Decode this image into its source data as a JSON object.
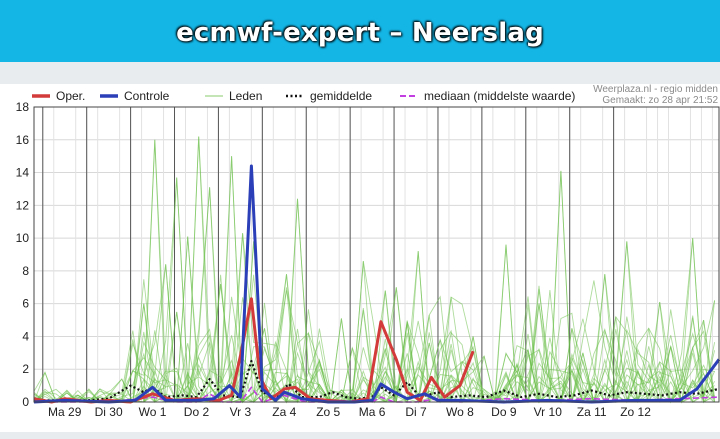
{
  "header": {
    "title": "ecmwf-expert – Neerslag"
  },
  "credit": {
    "source": "Weerplaza.nl - regio midden",
    "made": "Gemaakt: zo 28 apr 21:52"
  },
  "colors": {
    "oper": "#d33a3a",
    "controle": "#2b3fb8",
    "leden": "#6cbf4b",
    "gemiddelde": "#111111",
    "mediaan": "#c33ee0"
  },
  "chart_data": {
    "type": "line",
    "x_unit": "days from Ma 29 (00h ticks)",
    "xlim": [
      -0.7,
      14.9
    ],
    "ylim": [
      0,
      18
    ],
    "y_ticks": [
      0,
      2,
      4,
      6,
      8,
      10,
      12,
      14,
      16,
      18
    ],
    "x_ticks": [
      {
        "x": 0,
        "label": "Ma 29"
      },
      {
        "x": 1,
        "label": "Di 30"
      },
      {
        "x": 2,
        "label": "Wo 1"
      },
      {
        "x": 3,
        "label": "Do 2"
      },
      {
        "x": 4,
        "label": "Vr 3"
      },
      {
        "x": 5,
        "label": "Za 4"
      },
      {
        "x": 6,
        "label": "Zo 5"
      },
      {
        "x": 7,
        "label": "Ma 6"
      },
      {
        "x": 8,
        "label": "Di 7"
      },
      {
        "x": 9,
        "label": "Wo 8"
      },
      {
        "x": 10,
        "label": "Do 9"
      },
      {
        "x": 11,
        "label": "Vr 10"
      },
      {
        "x": 12,
        "label": "Za 11"
      },
      {
        "x": 13,
        "label": "Zo 12"
      }
    ],
    "grid": true,
    "legend": [
      {
        "key": "oper",
        "label": "Oper.",
        "style": "solid-thick"
      },
      {
        "key": "controle",
        "label": "Controle",
        "style": "solid-thick"
      },
      {
        "key": "leden",
        "label": "Leden",
        "style": "solid-thin"
      },
      {
        "key": "gemiddelde",
        "label": "gemiddelde",
        "style": "dotted"
      },
      {
        "key": "mediaan",
        "label": "mediaan (middelste waarde)",
        "style": "dashed"
      }
    ],
    "series": [
      {
        "key": "oper",
        "name": "Oper.",
        "points": [
          [
            -0.7,
            0.2
          ],
          [
            -0.3,
            0
          ],
          [
            0,
            0.2
          ],
          [
            0.3,
            0.1
          ],
          [
            0.6,
            0
          ],
          [
            1,
            0.1
          ],
          [
            1.5,
            0
          ],
          [
            2,
            0.5
          ],
          [
            2.5,
            0.1
          ],
          [
            3,
            0.2
          ],
          [
            3.5,
            0.1
          ],
          [
            3.8,
            0.4
          ],
          [
            4,
            2.8
          ],
          [
            4.25,
            6.3
          ],
          [
            4.45,
            1.5
          ],
          [
            4.7,
            0.2
          ],
          [
            5,
            0.8
          ],
          [
            5.25,
            0.9
          ],
          [
            5.6,
            0.2
          ],
          [
            6,
            0.1
          ],
          [
            6.5,
            0
          ],
          [
            6.9,
            0.2
          ],
          [
            7.2,
            4.9
          ],
          [
            7.55,
            2.6
          ],
          [
            7.8,
            0.6
          ],
          [
            8.1,
            0.1
          ],
          [
            8.35,
            1.5
          ],
          [
            8.65,
            0.3
          ],
          [
            9.0,
            1.0
          ],
          [
            9.3,
            3.1
          ]
        ]
      },
      {
        "key": "controle",
        "name": "Controle",
        "points": [
          [
            -0.7,
            0
          ],
          [
            0,
            0.1
          ],
          [
            1,
            0
          ],
          [
            1.6,
            0.1
          ],
          [
            2,
            0.9
          ],
          [
            2.3,
            0.1
          ],
          [
            3,
            0.1
          ],
          [
            3.4,
            0.2
          ],
          [
            3.75,
            1.0
          ],
          [
            4.0,
            0.3
          ],
          [
            4.25,
            14.4
          ],
          [
            4.5,
            0.8
          ],
          [
            4.8,
            0.1
          ],
          [
            5,
            0.6
          ],
          [
            5.4,
            0.2
          ],
          [
            6,
            0
          ],
          [
            6.6,
            0
          ],
          [
            7.0,
            0.1
          ],
          [
            7.2,
            1.1
          ],
          [
            7.5,
            0.6
          ],
          [
            7.8,
            0.2
          ],
          [
            8.2,
            0.5
          ],
          [
            8.5,
            0.1
          ],
          [
            9,
            0.1
          ],
          [
            10,
            0
          ],
          [
            11,
            0.1
          ],
          [
            12,
            0
          ],
          [
            13,
            0.1
          ],
          [
            14,
            0.1
          ],
          [
            14.4,
            0.8
          ],
          [
            14.9,
            2.6
          ]
        ]
      },
      {
        "key": "gemiddelde",
        "name": "gemiddelde",
        "points": [
          [
            -0.7,
            0.1
          ],
          [
            0,
            0.1
          ],
          [
            0.5,
            0.1
          ],
          [
            1,
            0.2
          ],
          [
            1.5,
            1.0
          ],
          [
            1.8,
            0.6
          ],
          [
            2,
            0.9
          ],
          [
            2.3,
            0.3
          ],
          [
            2.7,
            0.4
          ],
          [
            3,
            0.3
          ],
          [
            3.3,
            1.4
          ],
          [
            3.6,
            0.4
          ],
          [
            4.0,
            0.3
          ],
          [
            4.25,
            2.5
          ],
          [
            4.5,
            0.6
          ],
          [
            4.8,
            0.3
          ],
          [
            5.1,
            1.1
          ],
          [
            5.4,
            0.3
          ],
          [
            5.8,
            0.3
          ],
          [
            6.1,
            0.6
          ],
          [
            6.4,
            0.3
          ],
          [
            6.7,
            0.2
          ],
          [
            7.0,
            0.3
          ],
          [
            7.2,
            0.9
          ],
          [
            7.5,
            0.4
          ],
          [
            7.8,
            1.2
          ],
          [
            8.1,
            0.3
          ],
          [
            8.5,
            0.6
          ],
          [
            8.8,
            0.3
          ],
          [
            9.2,
            0.4
          ],
          [
            9.6,
            0.3
          ],
          [
            10,
            0.7
          ],
          [
            10.4,
            0.3
          ],
          [
            10.8,
            0.5
          ],
          [
            11.2,
            0.3
          ],
          [
            11.6,
            0.4
          ],
          [
            12,
            0.7
          ],
          [
            12.4,
            0.4
          ],
          [
            12.8,
            0.6
          ],
          [
            13.2,
            0.5
          ],
          [
            13.6,
            0.4
          ],
          [
            14,
            0.6
          ],
          [
            14.4,
            0.5
          ],
          [
            14.9,
            0.8
          ]
        ]
      },
      {
        "key": "mediaan",
        "name": "mediaan (middelste waarde)",
        "points": [
          [
            -0.7,
            0
          ],
          [
            0,
            0
          ],
          [
            1,
            0
          ],
          [
            2,
            0.3
          ],
          [
            2.5,
            0
          ],
          [
            3,
            0
          ],
          [
            3.3,
            0.5
          ],
          [
            3.6,
            0
          ],
          [
            4,
            0
          ],
          [
            4.25,
            0.9
          ],
          [
            4.5,
            0
          ],
          [
            5,
            0.4
          ],
          [
            5.5,
            0
          ],
          [
            6,
            0
          ],
          [
            7,
            0
          ],
          [
            7.2,
            0.3
          ],
          [
            7.5,
            0
          ],
          [
            8,
            0
          ],
          [
            8.5,
            0.2
          ],
          [
            9,
            0
          ],
          [
            10,
            0.2
          ],
          [
            11,
            0.1
          ],
          [
            12,
            0.2
          ],
          [
            13,
            0.1
          ],
          [
            14,
            0.2
          ],
          [
            14.9,
            0.3
          ]
        ]
      }
    ],
    "leden_peaks": [
      {
        "x": 1.8,
        "y": 6.0
      },
      {
        "x": 2.0,
        "y": 16.0
      },
      {
        "x": 2.2,
        "y": 8.4
      },
      {
        "x": 2.45,
        "y": 13.7
      },
      {
        "x": 2.6,
        "y": 5.5
      },
      {
        "x": 2.9,
        "y": 10.1
      },
      {
        "x": 3.1,
        "y": 16.2
      },
      {
        "x": 3.35,
        "y": 13.1
      },
      {
        "x": 3.55,
        "y": 7.2
      },
      {
        "x": 3.9,
        "y": 15.0
      },
      {
        "x": 4.05,
        "y": 10.3
      },
      {
        "x": 4.3,
        "y": 9.8
      },
      {
        "x": 4.55,
        "y": 4.5
      },
      {
        "x": 5.0,
        "y": 7.8
      },
      {
        "x": 5.2,
        "y": 12.4
      },
      {
        "x": 5.45,
        "y": 4.2
      },
      {
        "x": 5.8,
        "y": 2.5
      },
      {
        "x": 6.2,
        "y": 5.1
      },
      {
        "x": 6.45,
        "y": 3.3
      },
      {
        "x": 6.75,
        "y": 8.6
      },
      {
        "x": 7.2,
        "y": 6.8
      },
      {
        "x": 7.55,
        "y": 7.0
      },
      {
        "x": 7.8,
        "y": 4.9
      },
      {
        "x": 8.05,
        "y": 9.2
      },
      {
        "x": 8.35,
        "y": 5.3
      },
      {
        "x": 8.65,
        "y": 3.8
      },
      {
        "x": 8.9,
        "y": 6.4
      },
      {
        "x": 9.2,
        "y": 4.0
      },
      {
        "x": 9.6,
        "y": 2.8
      },
      {
        "x": 10.1,
        "y": 9.6
      },
      {
        "x": 10.5,
        "y": 3.2
      },
      {
        "x": 10.9,
        "y": 6.0
      },
      {
        "x": 11.2,
        "y": 14.1
      },
      {
        "x": 11.5,
        "y": 4.5
      },
      {
        "x": 11.9,
        "y": 3.0
      },
      {
        "x": 12.2,
        "y": 7.8
      },
      {
        "x": 12.55,
        "y": 5.2
      },
      {
        "x": 12.9,
        "y": 9.8
      },
      {
        "x": 13.25,
        "y": 4.5
      },
      {
        "x": 13.55,
        "y": 6.1
      },
      {
        "x": 13.9,
        "y": 3.4
      },
      {
        "x": 14.25,
        "y": 10.0
      },
      {
        "x": 14.55,
        "y": 5.0
      },
      {
        "x": 14.8,
        "y": 6.2
      },
      {
        "x": 0.9,
        "y": 0.8
      },
      {
        "x": 1.3,
        "y": 1.4
      },
      {
        "x": 1.55,
        "y": 1.9
      },
      {
        "x": 0.2,
        "y": 0.4
      },
      {
        "x": -0.5,
        "y": 1.8
      }
    ]
  }
}
